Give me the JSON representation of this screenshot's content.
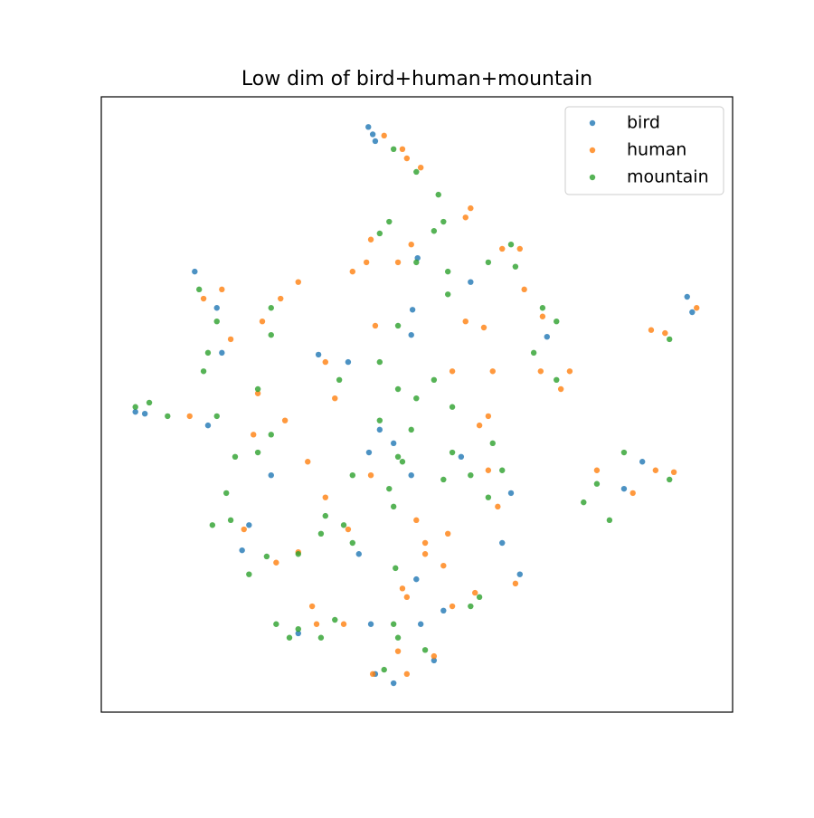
{
  "chart_data": {
    "type": "scatter",
    "title": "Low dim of bird+human+mountain",
    "xlim": [
      0,
      100
    ],
    "ylim": [
      0,
      100
    ],
    "legend": "upper right",
    "series": [
      {
        "name": "bird",
        "color": "#1f77b4",
        "x": [
          42.3,
          43.0,
          43.4,
          14.8,
          18.3,
          49.3,
          34.4,
          92.8,
          93.6,
          5.4,
          6.9,
          16.9,
          46.3,
          49.1,
          64.9,
          23.4,
          22.3,
          40.8,
          43.4,
          46.3,
          52.7,
          50.6,
          49.9,
          57.0,
          70.6,
          82.8,
          85.7,
          50.1,
          58.5,
          19.1,
          42.4,
          26.9,
          63.5,
          66.3,
          49.1,
          39.1,
          44.1,
          54.2,
          42.7,
          31.2
        ],
        "y": [
          95.1,
          93.9,
          92.8,
          71.6,
          65.7,
          65.4,
          58.1,
          67.5,
          65.0,
          48.8,
          48.5,
          46.6,
          43.7,
          38.5,
          35.6,
          30.4,
          26.3,
          25.7,
          6.2,
          4.7,
          8.4,
          14.3,
          21.6,
          41.5,
          61.0,
          36.3,
          40.7,
          73.8,
          69.9,
          58.4,
          42.2,
          38.5,
          27.5,
          22.4,
          61.3,
          56.9,
          45.9,
          16.5,
          14.3,
          12.8
        ]
      },
      {
        "name": "human",
        "color": "#ff7f0e",
        "x": [
          44.8,
          47.7,
          48.4,
          50.6,
          57.7,
          58.5,
          42.7,
          49.1,
          39.8,
          42.0,
          47.0,
          31.2,
          25.5,
          28.4,
          67.0,
          69.9,
          63.5,
          66.3,
          87.1,
          89.3,
          94.3,
          57.7,
          60.6,
          20.5,
          24.8,
          29.1,
          35.5,
          37.0,
          43.4,
          55.6,
          62.0,
          74.2,
          72.8,
          61.3,
          59.9,
          32.7,
          24.1,
          42.7,
          49.9,
          51.3,
          54.9,
          54.2,
          61.3,
          62.8,
          87.8,
          90.7,
          84.2,
          78.5,
          39.1,
          35.5,
          31.2,
          27.7,
          22.6,
          65.6,
          59.2,
          55.6,
          47.7,
          48.4,
          33.4,
          34.1,
          38.4,
          47.0,
          52.7,
          48.4,
          43.0,
          51.3,
          69.6,
          19.1,
          16.2,
          14.0
        ],
        "y": [
          93.7,
          91.5,
          90.0,
          88.5,
          80.4,
          81.9,
          76.8,
          76.0,
          71.6,
          73.1,
          73.1,
          69.9,
          63.5,
          67.2,
          68.7,
          64.3,
          75.3,
          75.3,
          62.1,
          61.6,
          65.7,
          63.5,
          62.5,
          60.6,
          51.8,
          47.4,
          56.9,
          51.0,
          62.8,
          55.4,
          55.4,
          55.4,
          52.5,
          48.1,
          46.6,
          40.7,
          45.1,
          38.5,
          31.2,
          27.5,
          29.0,
          23.8,
          39.3,
          33.4,
          39.3,
          39.0,
          35.6,
          39.3,
          29.7,
          34.9,
          26.0,
          24.3,
          29.7,
          20.9,
          19.4,
          17.2,
          20.1,
          18.7,
          17.2,
          14.3,
          14.3,
          9.9,
          9.1,
          6.2,
          6.2,
          25.7,
          55.4,
          68.7,
          67.2,
          48.1
        ]
      },
      {
        "name": "mountain",
        "color": "#2ca02c",
        "x": [
          46.3,
          49.9,
          53.4,
          54.2,
          52.7,
          45.6,
          44.1,
          49.9,
          54.9,
          54.9,
          61.3,
          64.9,
          65.6,
          69.9,
          72.1,
          68.5,
          72.1,
          90.0,
          15.5,
          18.3,
          26.9,
          26.9,
          16.9,
          16.2,
          24.8,
          26.9,
          24.8,
          21.2,
          19.8,
          20.5,
          17.6,
          18.3,
          10.5,
          5.4,
          7.6,
          37.7,
          44.1,
          47.0,
          47.0,
          49.9,
          52.7,
          55.6,
          44.1,
          49.1,
          47.7,
          39.8,
          47.0,
          54.2,
          55.6,
          62.0,
          58.5,
          63.5,
          61.3,
          78.5,
          76.4,
          80.5,
          82.8,
          90.0,
          35.5,
          38.4,
          39.8,
          31.2,
          26.2,
          23.4,
          34.8,
          46.3,
          45.6,
          46.6,
          59.9,
          58.5,
          27.7,
          29.8,
          31.2,
          34.8,
          37.0,
          46.3,
          47.0,
          44.8,
          51.3
        ],
        "y": [
          91.5,
          87.8,
          84.1,
          79.7,
          78.2,
          79.7,
          77.8,
          73.1,
          71.6,
          67.9,
          73.1,
          76.0,
          72.4,
          65.7,
          63.5,
          58.4,
          54.0,
          60.6,
          68.7,
          63.5,
          65.7,
          61.3,
          58.4,
          55.4,
          52.5,
          45.1,
          42.2,
          41.5,
          35.6,
          31.2,
          30.4,
          48.1,
          48.1,
          49.6,
          50.3,
          54.0,
          56.9,
          62.8,
          52.5,
          51.0,
          54.0,
          49.6,
          47.4,
          45.9,
          40.7,
          38.5,
          41.5,
          37.8,
          42.2,
          43.7,
          38.5,
          39.3,
          34.9,
          37.1,
          34.1,
          31.2,
          42.2,
          37.8,
          31.9,
          30.4,
          27.5,
          25.7,
          25.3,
          22.4,
          29.0,
          33.4,
          36.3,
          23.4,
          18.7,
          17.2,
          14.3,
          12.1,
          13.5,
          12.1,
          15.0,
          14.3,
          12.1,
          6.9,
          10.1
        ]
      }
    ]
  }
}
